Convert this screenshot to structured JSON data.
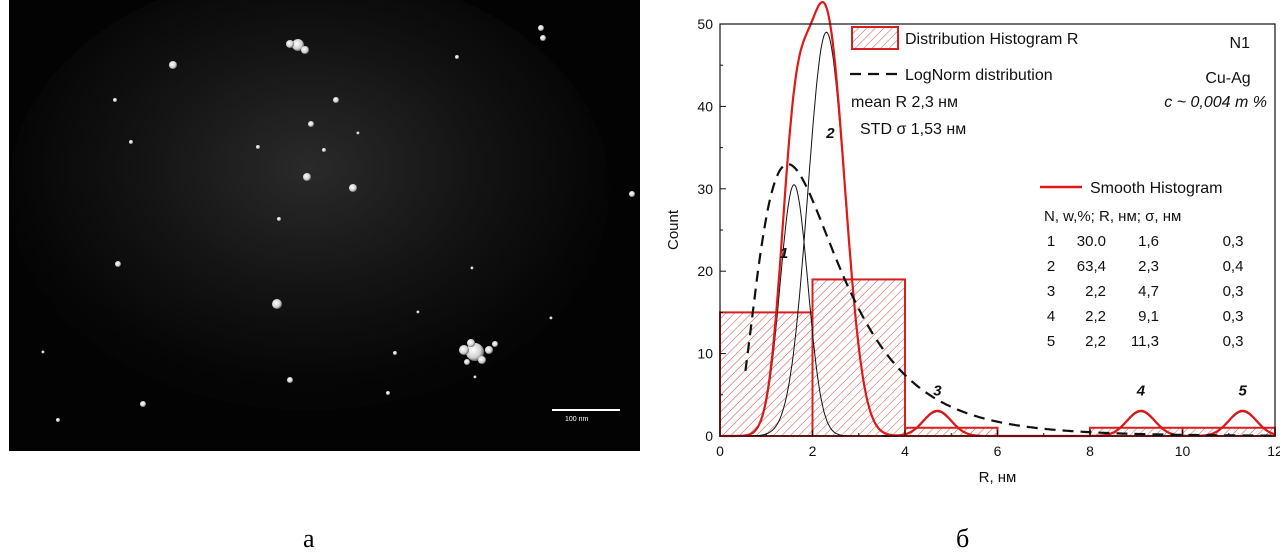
{
  "micrograph": {
    "scale_bar_label": "100 nm"
  },
  "captions": {
    "left": "а",
    "right": "б"
  },
  "chart_data": {
    "type": "histogram",
    "xlabel": "R, нм",
    "ylabel": "Count",
    "xlim": [
      0,
      12
    ],
    "ylim": [
      0,
      50
    ],
    "x_ticks": [
      0,
      2,
      4,
      6,
      8,
      10,
      12
    ],
    "y_ticks": [
      0,
      10,
      20,
      30,
      40,
      50
    ],
    "panel_label": "N1",
    "sample_label": "Cu-Ag",
    "concentration_label": "c ~ 0,004 m %",
    "legend": {
      "histogram": "Distribution Histogram R",
      "lognorm": "LogNorm distribution",
      "mean": "mean R 2,3 нм",
      "std": "STD  σ 1,53 нм",
      "smooth": "Smooth Histogram"
    },
    "colors": {
      "histogram": "#d62020",
      "smooth": "#e01818",
      "lognorm": "#111111",
      "components": "#111111",
      "hatch": "#d05050"
    },
    "histogram_bins": [
      {
        "x0": 0,
        "x1": 2,
        "count": 15
      },
      {
        "x0": 2,
        "x1": 4,
        "count": 19
      },
      {
        "x0": 4,
        "x1": 6,
        "count": 1
      },
      {
        "x0": 6,
        "x1": 8,
        "count": 0
      },
      {
        "x0": 8,
        "x1": 10,
        "count": 1
      },
      {
        "x0": 10,
        "x1": 12,
        "count": 1
      }
    ],
    "lognorm": {
      "mu_log": 0.72,
      "sigma_log": 0.58,
      "peak_count": 33
    },
    "components": [
      {
        "label": "1",
        "center": 1.6,
        "sigma": 0.3,
        "height": 30.5
      },
      {
        "label": "2",
        "center": 2.3,
        "sigma": 0.4,
        "height": 49
      },
      {
        "label": "3",
        "center": 4.7,
        "sigma": 0.3,
        "height": 3
      },
      {
        "label": "4",
        "center": 9.1,
        "sigma": 0.3,
        "height": 3
      },
      {
        "label": "5",
        "center": 11.3,
        "sigma": 0.3,
        "height": 3
      }
    ],
    "table": {
      "header": [
        "N,",
        "w,%;",
        "R, нм;",
        "σ, нм"
      ],
      "rows": [
        [
          "1",
          "30.0",
          "1,6",
          "0,3"
        ],
        [
          "2",
          "63,4",
          "2,3",
          "0,4"
        ],
        [
          "3",
          "2,2",
          "4,7",
          "0,3"
        ],
        [
          "4",
          "2,2",
          "9,1",
          "0,3"
        ],
        [
          "5",
          "2,2",
          "11,3",
          "0,3"
        ]
      ]
    }
  }
}
